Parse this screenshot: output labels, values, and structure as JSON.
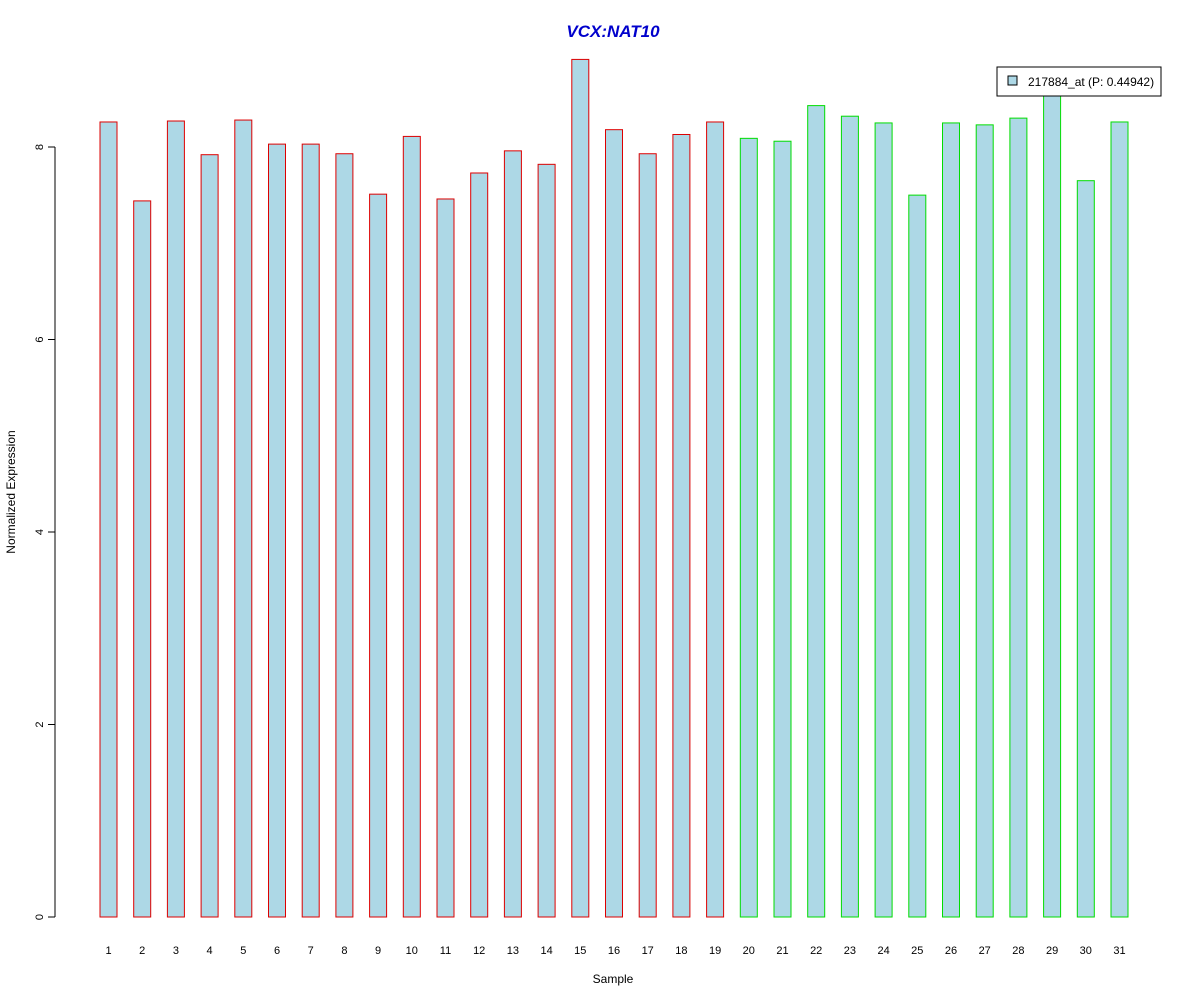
{
  "chart_data": {
    "type": "bar",
    "title": "VCX:NAT10",
    "xlabel": "Sample",
    "ylabel": "Normalized Expression",
    "categories": [
      "1",
      "2",
      "3",
      "4",
      "5",
      "6",
      "7",
      "8",
      "9",
      "10",
      "11",
      "12",
      "13",
      "14",
      "15",
      "16",
      "17",
      "18",
      "19",
      "20",
      "21",
      "22",
      "23",
      "24",
      "25",
      "26",
      "27",
      "28",
      "29",
      "30",
      "31"
    ],
    "series": [
      {
        "name": "217884_at (P: 0.44942)",
        "values": [
          8.26,
          7.44,
          8.27,
          7.92,
          8.28,
          8.03,
          8.03,
          7.93,
          7.51,
          8.11,
          7.46,
          7.73,
          7.96,
          7.82,
          8.91,
          8.18,
          7.93,
          8.13,
          8.26,
          8.09,
          8.06,
          8.43,
          8.32,
          8.25,
          7.5,
          8.25,
          8.23,
          8.3,
          8.6,
          7.65,
          8.26
        ]
      }
    ],
    "groups": [
      {
        "samples": [
          1,
          19
        ],
        "border_color": "#dd0000"
      },
      {
        "samples": [
          20,
          31
        ],
        "border_color": "#00dd00"
      }
    ],
    "yticks": [
      0,
      2,
      4,
      6,
      8
    ],
    "ylim": [
      0,
      8.95
    ],
    "grid": false,
    "legend_position": "top-right",
    "colors": {
      "bar_fill": "#add8e6",
      "title": "#0000cc",
      "axis": "#000000"
    }
  }
}
